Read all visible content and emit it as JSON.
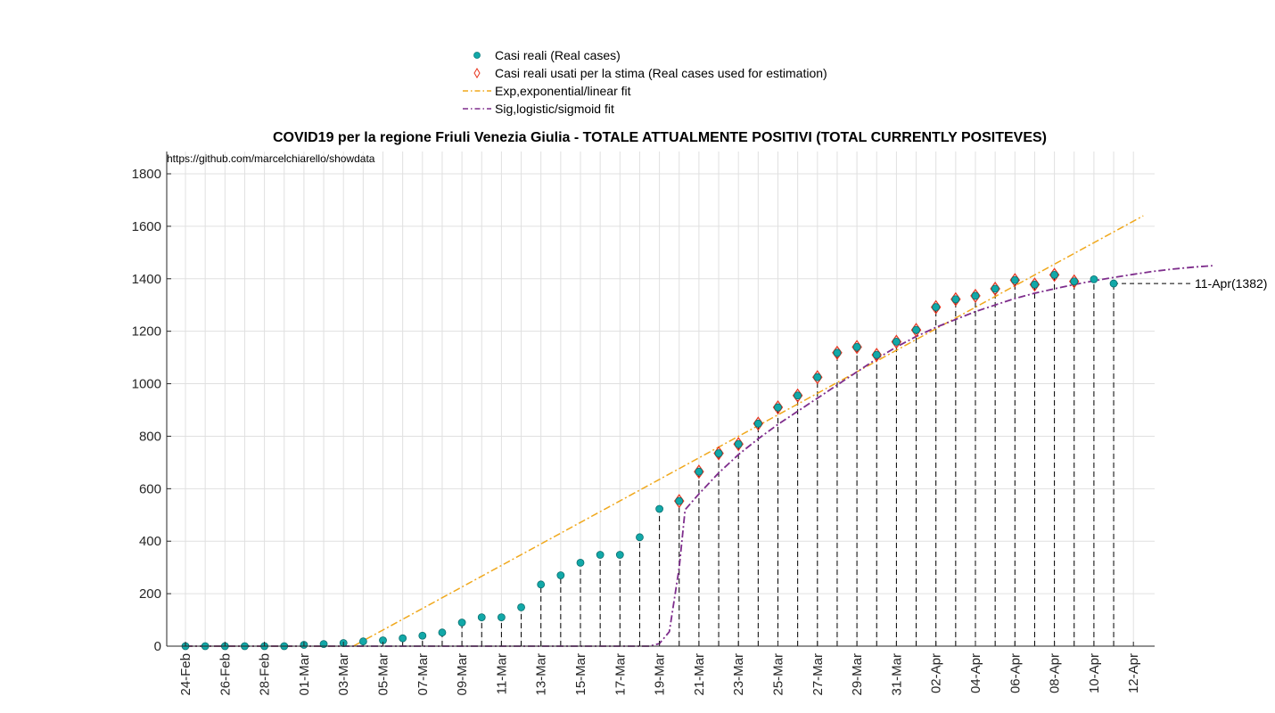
{
  "chart_data": {
    "type": "scatter",
    "title": "COVID19 per la regione Friuli Venezia Giulia - TOTALE ATTUALMENTE POSITIVI (TOTAL CURRENTLY POSITEVES)",
    "source_note": "https://github.com/marcelchiarello/showdata",
    "xlabel": "",
    "ylabel": "",
    "ylim": [
      0,
      1800
    ],
    "y_ticks": [
      0,
      200,
      400,
      600,
      800,
      1000,
      1200,
      1400,
      1600,
      1800
    ],
    "x_ticks": [
      "24-Feb",
      "26-Feb",
      "28-Feb",
      "01-Mar",
      "03-Mar",
      "05-Mar",
      "07-Mar",
      "09-Mar",
      "11-Mar",
      "13-Mar",
      "15-Mar",
      "17-Mar",
      "19-Mar",
      "21-Mar",
      "23-Mar",
      "25-Mar",
      "27-Mar",
      "29-Mar",
      "31-Mar",
      "02-Apr",
      "04-Apr",
      "06-Apr",
      "08-Apr",
      "10-Apr",
      "12-Apr"
    ],
    "grid": true,
    "legend_position": "top-center",
    "annotation": "11-Apr(1382)",
    "series": [
      {
        "name": "Casi reali (Real cases)",
        "color": "#12a8a8",
        "marker": "circle",
        "values": [
          0,
          0,
          0,
          0,
          0,
          0,
          5,
          8,
          12,
          18,
          22,
          30,
          40,
          52,
          90,
          110,
          110,
          148,
          235,
          270,
          318,
          348,
          348,
          415,
          523,
          553,
          665,
          735,
          770,
          848,
          910,
          955,
          1025,
          1118,
          1140,
          1110,
          1160,
          1205,
          1292,
          1322,
          1335,
          1362,
          1395,
          1378,
          1415,
          1390,
          1398,
          1382
        ]
      },
      {
        "name": "Casi reali usati per la stima (Real cases used for estimation)",
        "color": "#e8331c",
        "marker": "diamond",
        "values": [
          null,
          null,
          null,
          null,
          null,
          null,
          null,
          null,
          null,
          null,
          null,
          null,
          null,
          null,
          null,
          null,
          null,
          null,
          null,
          null,
          null,
          null,
          null,
          null,
          null,
          553,
          665,
          735,
          770,
          848,
          910,
          955,
          1025,
          1118,
          1140,
          1110,
          1160,
          1205,
          1292,
          1322,
          1335,
          1362,
          1395,
          1378,
          1415,
          1390,
          null,
          null
        ]
      },
      {
        "name": "Exp,exponential/linear fit",
        "color": "#f0a81c",
        "line": "dash-dot",
        "values": [
          0,
          0,
          0,
          0,
          0,
          0,
          0,
          0,
          0,
          0,
          0,
          0,
          0,
          0,
          0,
          0,
          0,
          0,
          0,
          0,
          0,
          0,
          0,
          0,
          0,
          0,
          0,
          0,
          0,
          0,
          0,
          0,
          0,
          0,
          0,
          0,
          0,
          0,
          0,
          0,
          0,
          0,
          0,
          0,
          0,
          0,
          0,
          0,
          0
        ],
        "segments": [
          {
            "x": [
              0,
              8
            ],
            "y": [
              0,
              0
            ]
          },
          {
            "x": [
              8.5,
              48.5
            ],
            "y": [
              0,
              1640
            ]
          }
        ]
      },
      {
        "name": "Sig,logistic/sigmoid fit",
        "color": "#7e2d8c",
        "line": "dash-dot",
        "points": [
          [
            0,
            0
          ],
          [
            23.5,
            0
          ],
          [
            24.0,
            10
          ],
          [
            24.5,
            55
          ],
          [
            25.0,
            300
          ],
          [
            25.3,
            520
          ],
          [
            26,
            580
          ],
          [
            27,
            660
          ],
          [
            28,
            730
          ],
          [
            29,
            790
          ],
          [
            30,
            845
          ],
          [
            31,
            895
          ],
          [
            32,
            945
          ],
          [
            33,
            995
          ],
          [
            34,
            1045
          ],
          [
            35,
            1095
          ],
          [
            36,
            1140
          ],
          [
            37,
            1180
          ],
          [
            38,
            1215
          ],
          [
            39,
            1245
          ],
          [
            40,
            1275
          ],
          [
            41,
            1300
          ],
          [
            42,
            1325
          ],
          [
            43,
            1345
          ],
          [
            44,
            1362
          ],
          [
            45,
            1378
          ],
          [
            46,
            1392
          ],
          [
            47,
            1405
          ],
          [
            48,
            1417
          ],
          [
            49,
            1428
          ],
          [
            50,
            1437
          ],
          [
            51,
            1444
          ],
          [
            52,
            1450
          ]
        ]
      }
    ]
  }
}
